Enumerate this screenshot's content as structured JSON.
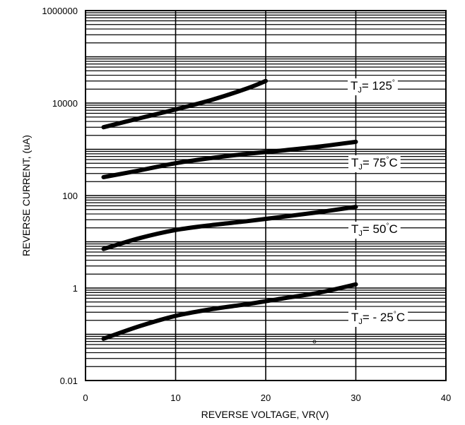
{
  "chart_data": {
    "type": "line",
    "title": "",
    "xlabel": "REVERSE VOLTAGE, VR(V)",
    "ylabel": "REVERSE CURRENT, (uA)",
    "x_scale": "linear",
    "y_scale": "log",
    "xlim": [
      0,
      40
    ],
    "ylim": [
      0.01,
      1000000
    ],
    "x_ticks": [
      "0",
      "10",
      "20",
      "30",
      "40"
    ],
    "y_ticks": [
      "0.01",
      "1",
      "100",
      "10000",
      "1000000"
    ],
    "grid": true,
    "series": [
      {
        "label_main": "T",
        "label_sub": "J",
        "label_rest": "= 125",
        "label_deg": "°",
        "label_unit": "",
        "x": [
          2,
          6,
          10,
          14,
          18,
          20
        ],
        "y": [
          3000,
          4700,
          7300,
          11700,
          21000,
          30000
        ]
      },
      {
        "label_main": "T",
        "label_sub": "J",
        "label_rest": "= 75",
        "label_deg": "°",
        "label_unit": "C",
        "x": [
          2,
          6,
          10,
          14,
          18,
          22,
          26,
          30
        ],
        "y": [
          250,
          350,
          500,
          650,
          800,
          950,
          1150,
          1450
        ]
      },
      {
        "label_main": "T",
        "label_sub": "J",
        "label_rest": "= 50",
        "label_deg": "°",
        "label_unit": "C",
        "x": [
          2,
          6,
          10,
          14,
          18,
          22,
          26,
          30
        ],
        "y": [
          7,
          12,
          18,
          23,
          28,
          35,
          44,
          57
        ]
      },
      {
        "label_main": "T",
        "label_sub": "J",
        "label_rest": "= - 25",
        "label_deg": "°",
        "label_unit": "C",
        "x": [
          2,
          6,
          10,
          14,
          18,
          22,
          26,
          30
        ],
        "y": [
          0.08,
          0.15,
          0.25,
          0.35,
          0.45,
          0.6,
          0.8,
          1.2
        ]
      }
    ]
  }
}
